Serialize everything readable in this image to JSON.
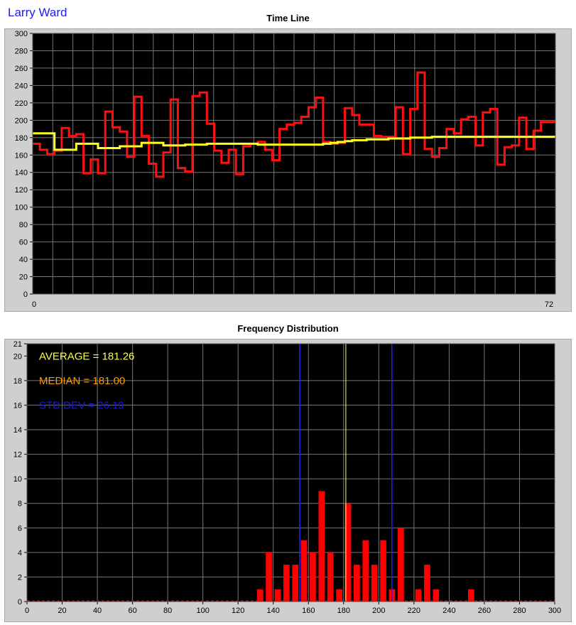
{
  "user_name": "Larry Ward",
  "colors": {
    "raw_line": "#ff1010",
    "running_avg": "#ffff20",
    "bar": "#ff0000",
    "mean_line": "#ffff88",
    "sd_line": "#2020ff",
    "average_text": "#ffff40",
    "median_text": "#ff9900",
    "std_text": "#1a1ad0",
    "plot_bg": "#000000"
  },
  "chart_data": [
    {
      "type": "line",
      "title": "Time Line",
      "xlim": [
        0,
        72
      ],
      "ylim": [
        0,
        300
      ],
      "x_tick_labels": [
        "0",
        "72"
      ],
      "y_ticks": [
        0,
        20,
        40,
        60,
        80,
        100,
        120,
        140,
        160,
        180,
        200,
        220,
        240,
        260,
        280,
        300
      ],
      "grid": true,
      "series": [
        {
          "values": [
            173,
            166,
            161,
            165,
            191,
            182,
            184,
            139,
            155,
            139,
            210,
            192,
            187,
            158,
            227,
            182,
            150,
            135,
            163,
            224,
            145,
            141,
            228,
            232,
            196,
            165,
            151,
            166,
            138,
            170,
            173,
            175,
            166,
            154,
            190,
            195,
            197,
            204,
            215,
            226,
            175,
            173,
            174,
            214,
            206,
            195,
            195,
            182,
            181,
            181,
            215,
            161,
            213,
            255,
            167,
            158,
            168,
            190,
            185,
            201,
            204,
            171,
            209,
            213,
            149,
            169,
            171,
            203,
            167,
            188,
            198,
            198
          ]
        },
        {
          "values": [
            185,
            185,
            185,
            166,
            166,
            166,
            173,
            173,
            173,
            168,
            168,
            168,
            170,
            170,
            170,
            174,
            174,
            174,
            171,
            171,
            171,
            172,
            172,
            172,
            173,
            173,
            173,
            173,
            173,
            173,
            173,
            172,
            172,
            172,
            172,
            172,
            172,
            172,
            172,
            172,
            173,
            174,
            175,
            176,
            177,
            177,
            178,
            178,
            178,
            179,
            179,
            179,
            180,
            180,
            180,
            181,
            181,
            181,
            181,
            181,
            181,
            181,
            181,
            181,
            181,
            181,
            181,
            181,
            181,
            181,
            181,
            181
          ]
        }
      ]
    },
    {
      "type": "bar",
      "title": "Frequency Distribution",
      "xlim": [
        0,
        300
      ],
      "ylim": [
        0,
        21
      ],
      "x_ticks": [
        0,
        20,
        40,
        60,
        80,
        100,
        120,
        140,
        160,
        180,
        200,
        220,
        240,
        260,
        280,
        300
      ],
      "y_ticks": [
        0,
        2,
        4,
        6,
        8,
        10,
        12,
        14,
        16,
        18,
        20,
        21
      ],
      "grid": true,
      "bin_width": 5,
      "bars": [
        {
          "x": 132.5,
          "value": 1
        },
        {
          "x": 137.5,
          "value": 4
        },
        {
          "x": 142.5,
          "value": 1
        },
        {
          "x": 147.5,
          "value": 3
        },
        {
          "x": 152.5,
          "value": 3
        },
        {
          "x": 157.5,
          "value": 5
        },
        {
          "x": 162.5,
          "value": 4
        },
        {
          "x": 167.5,
          "value": 9
        },
        {
          "x": 172.5,
          "value": 4
        },
        {
          "x": 177.5,
          "value": 1
        },
        {
          "x": 182.5,
          "value": 8
        },
        {
          "x": 187.5,
          "value": 3
        },
        {
          "x": 192.5,
          "value": 5
        },
        {
          "x": 197.5,
          "value": 3
        },
        {
          "x": 202.5,
          "value": 5
        },
        {
          "x": 207.5,
          "value": 1
        },
        {
          "x": 212.5,
          "value": 6
        },
        {
          "x": 222.5,
          "value": 1
        },
        {
          "x": 227.5,
          "value": 3
        },
        {
          "x": 232.5,
          "value": 1
        },
        {
          "x": 252.5,
          "value": 1
        }
      ],
      "mean": 181.26,
      "sd_lines": [
        155.07,
        207.45
      ],
      "annotations": {
        "average": "AVERAGE = 181.26",
        "median": "MEDIAN = 181.00",
        "std_dev": "STD DEV = 26.19"
      }
    }
  ]
}
